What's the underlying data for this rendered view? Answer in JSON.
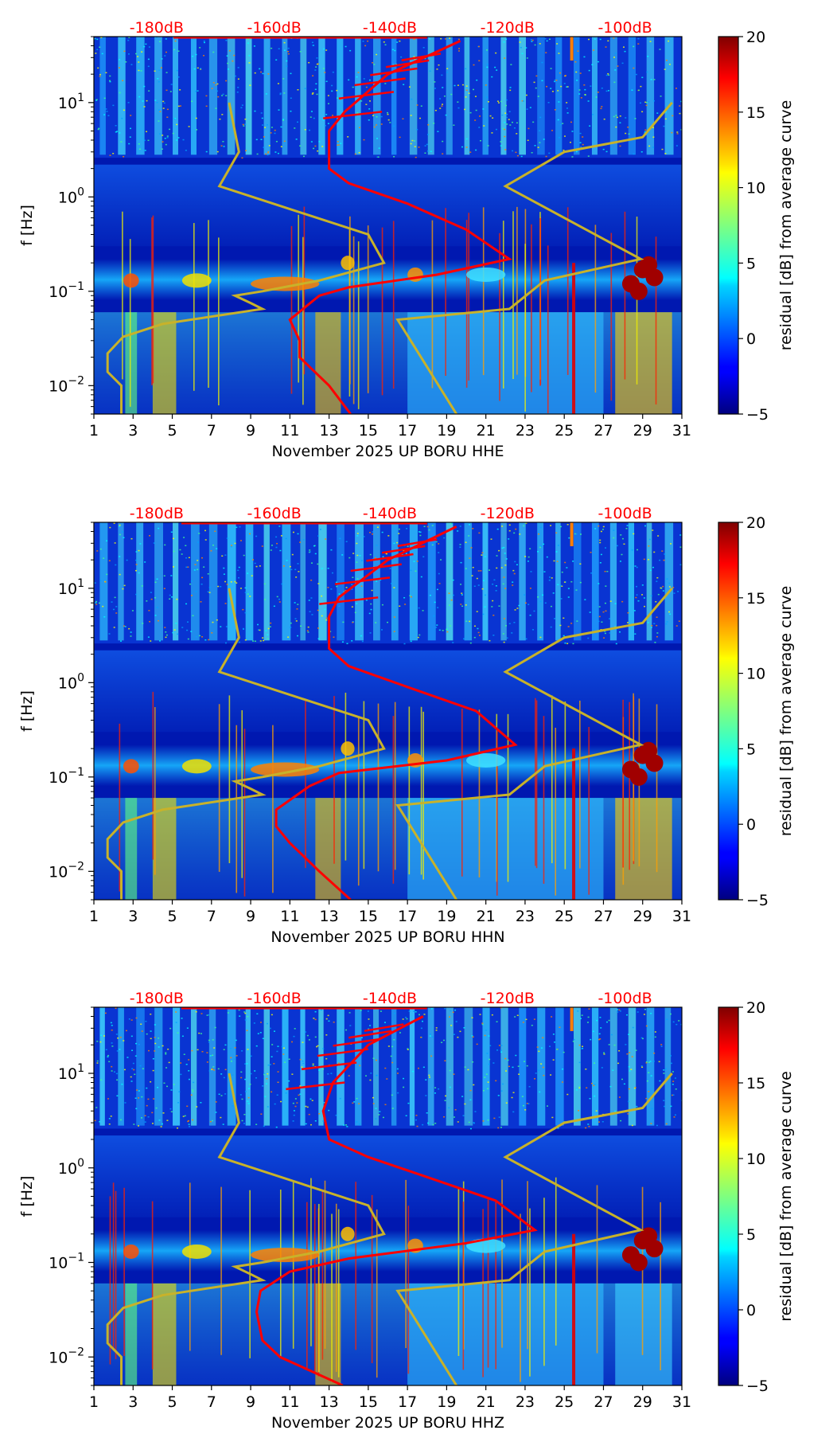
{
  "chart_data": [
    {
      "type": "heatmap",
      "xlabel": "November 2025 UP BORU  HHE",
      "ylabel": "f [Hz]",
      "x_ticks": [
        "1",
        "3",
        "5",
        "7",
        "9",
        "11",
        "13",
        "15",
        "17",
        "19",
        "21",
        "23",
        "25",
        "27",
        "29",
        "31"
      ],
      "y_ticks": [
        {
          "value": 0.01,
          "base": "10",
          "exp": "−2"
        },
        {
          "value": 0.1,
          "base": "10",
          "exp": "−1"
        },
        {
          "value": 1,
          "base": "10",
          "exp": "0"
        },
        {
          "value": 10,
          "base": "10",
          "exp": "1"
        }
      ],
      "db_labels": [
        "-180dB",
        "-160dB",
        "-140dB",
        "-120dB",
        "-100dB"
      ],
      "xlim": [
        1,
        31
      ],
      "ylim": [
        0.005,
        50
      ],
      "colorbar": {
        "label": "residual [dB] from average curve",
        "min": -5,
        "max": 20,
        "ticks": [
          "−5",
          "0",
          "5",
          "10",
          "15",
          "20"
        ]
      },
      "colors": {
        "noise_model": "#c8b22a",
        "psd_curve": "#ff0000",
        "db_text": "#ff0000"
      },
      "noise_model": [
        [
          7.9,
          10
        ],
        [
          8.4,
          3
        ],
        [
          7.4,
          1.3
        ],
        [
          15,
          0.4
        ],
        [
          15.8,
          0.2
        ],
        [
          12.5,
          0.13
        ],
        [
          9.6,
          0.1
        ],
        [
          8.2,
          0.09
        ],
        [
          9,
          0.075
        ],
        [
          9.6,
          0.065
        ],
        [
          4.5,
          0.045
        ],
        [
          2.5,
          0.033
        ],
        [
          1.7,
          0.022
        ],
        [
          1.7,
          0.014
        ],
        [
          2.4,
          0.01
        ],
        [
          2.4,
          0.005
        ]
      ],
      "noise_model_high": [
        [
          30.5,
          10
        ],
        [
          29,
          4.3
        ],
        [
          25,
          3
        ],
        [
          22,
          1.3
        ],
        [
          28.9,
          0.22
        ],
        [
          24,
          0.13
        ],
        [
          22.2,
          0.065
        ],
        [
          16.5,
          0.05
        ],
        [
          19.5,
          0.005
        ]
      ],
      "psd_curve": [
        [
          19.7,
          45
        ],
        [
          16,
          20
        ],
        [
          13.8,
          8
        ],
        [
          13,
          5
        ],
        [
          13,
          2
        ],
        [
          14,
          1.4
        ],
        [
          17,
          0.85
        ],
        [
          20,
          0.45
        ],
        [
          22.2,
          0.22
        ],
        [
          18.5,
          0.15
        ],
        [
          14,
          0.11
        ],
        [
          12.5,
          0.09
        ],
        [
          11,
          0.05
        ],
        [
          11.5,
          0.03
        ],
        [
          11.5,
          0.02
        ],
        [
          13,
          0.01
        ],
        [
          14.1,
          0.005
        ]
      ]
    },
    {
      "type": "heatmap",
      "xlabel": "November 2025 UP BORU  HHN",
      "ylabel": "f [Hz]",
      "x_ticks": [
        "1",
        "3",
        "5",
        "7",
        "9",
        "11",
        "13",
        "15",
        "17",
        "19",
        "21",
        "23",
        "25",
        "27",
        "29",
        "31"
      ],
      "y_ticks": [
        {
          "value": 0.01,
          "base": "10",
          "exp": "−2"
        },
        {
          "value": 0.1,
          "base": "10",
          "exp": "−1"
        },
        {
          "value": 1,
          "base": "10",
          "exp": "0"
        },
        {
          "value": 10,
          "base": "10",
          "exp": "1"
        }
      ],
      "db_labels": [
        "-180dB",
        "-160dB",
        "-140dB",
        "-120dB",
        "-100dB"
      ],
      "xlim": [
        1,
        31
      ],
      "ylim": [
        0.005,
        50
      ],
      "colorbar": {
        "label": "residual [dB] from average curve",
        "min": -5,
        "max": 20,
        "ticks": [
          "−5",
          "0",
          "5",
          "10",
          "15",
          "20"
        ]
      },
      "colors": {
        "noise_model": "#c8b22a",
        "psd_curve": "#ff0000",
        "db_text": "#ff0000"
      },
      "noise_model": [
        [
          7.9,
          10
        ],
        [
          8.4,
          3
        ],
        [
          7.4,
          1.3
        ],
        [
          15,
          0.4
        ],
        [
          15.8,
          0.2
        ],
        [
          12.5,
          0.13
        ],
        [
          9.6,
          0.1
        ],
        [
          8.2,
          0.09
        ],
        [
          9,
          0.075
        ],
        [
          9.6,
          0.065
        ],
        [
          4.5,
          0.045
        ],
        [
          2.5,
          0.033
        ],
        [
          1.7,
          0.022
        ],
        [
          1.7,
          0.014
        ],
        [
          2.4,
          0.01
        ],
        [
          2.4,
          0.005
        ]
      ],
      "noise_model_high": [
        [
          30.5,
          10
        ],
        [
          29,
          4.3
        ],
        [
          25,
          3
        ],
        [
          22,
          1.3
        ],
        [
          28.9,
          0.22
        ],
        [
          24,
          0.13
        ],
        [
          22.2,
          0.065
        ],
        [
          16.5,
          0.05
        ],
        [
          19.5,
          0.005
        ]
      ],
      "psd_curve": [
        [
          19.5,
          45
        ],
        [
          16,
          20
        ],
        [
          13.5,
          8
        ],
        [
          13,
          5
        ],
        [
          13,
          2.3
        ],
        [
          14,
          1.5
        ],
        [
          17,
          0.9
        ],
        [
          20.5,
          0.5
        ],
        [
          22.5,
          0.22
        ],
        [
          19,
          0.15
        ],
        [
          13.5,
          0.11
        ],
        [
          12,
          0.08
        ],
        [
          10.3,
          0.045
        ],
        [
          10.3,
          0.03
        ],
        [
          11,
          0.02
        ],
        [
          12.5,
          0.01
        ],
        [
          14.1,
          0.005
        ]
      ]
    },
    {
      "type": "heatmap",
      "xlabel": "November 2025 UP BORU  HHZ",
      "ylabel": "f [Hz]",
      "x_ticks": [
        "1",
        "3",
        "5",
        "7",
        "9",
        "11",
        "13",
        "15",
        "17",
        "19",
        "21",
        "23",
        "25",
        "27",
        "29",
        "31"
      ],
      "y_ticks": [
        {
          "value": 0.01,
          "base": "10",
          "exp": "−2"
        },
        {
          "value": 0.1,
          "base": "10",
          "exp": "−1"
        },
        {
          "value": 1,
          "base": "10",
          "exp": "0"
        },
        {
          "value": 10,
          "base": "10",
          "exp": "1"
        }
      ],
      "db_labels": [
        "-180dB",
        "-160dB",
        "-140dB",
        "-120dB",
        "-100dB"
      ],
      "xlim": [
        1,
        31
      ],
      "ylim": [
        0.005,
        50
      ],
      "colorbar": {
        "label": "residual [dB] from average curve",
        "min": -5,
        "max": 20,
        "ticks": [
          "−5",
          "0",
          "5",
          "10",
          "15",
          "20"
        ]
      },
      "colors": {
        "noise_model": "#c8b22a",
        "psd_curve": "#ff0000",
        "db_text": "#ff0000"
      },
      "noise_model": [
        [
          7.9,
          10
        ],
        [
          8.4,
          3
        ],
        [
          7.4,
          1.3
        ],
        [
          15,
          0.4
        ],
        [
          15.8,
          0.2
        ],
        [
          12.5,
          0.13
        ],
        [
          9.6,
          0.1
        ],
        [
          8.2,
          0.09
        ],
        [
          9,
          0.075
        ],
        [
          9.6,
          0.065
        ],
        [
          4.5,
          0.045
        ],
        [
          2.5,
          0.033
        ],
        [
          1.7,
          0.022
        ],
        [
          1.7,
          0.014
        ],
        [
          2.4,
          0.01
        ],
        [
          2.4,
          0.005
        ]
      ],
      "noise_model_high": [
        [
          30.5,
          10
        ],
        [
          29,
          4.3
        ],
        [
          25,
          3
        ],
        [
          22,
          1.3
        ],
        [
          28.9,
          0.22
        ],
        [
          24,
          0.13
        ],
        [
          22.2,
          0.065
        ],
        [
          16.5,
          0.05
        ],
        [
          19.5,
          0.005
        ]
      ],
      "psd_curve": [
        [
          17.8,
          40
        ],
        [
          15,
          20
        ],
        [
          13.2,
          8
        ],
        [
          12.7,
          4
        ],
        [
          13,
          2
        ],
        [
          15,
          1.3
        ],
        [
          18,
          0.8
        ],
        [
          21.5,
          0.45
        ],
        [
          23.5,
          0.22
        ],
        [
          20,
          0.16
        ],
        [
          14,
          0.11
        ],
        [
          11,
          0.08
        ],
        [
          9.5,
          0.05
        ],
        [
          9.3,
          0.03
        ],
        [
          9.6,
          0.015
        ],
        [
          10.5,
          0.01
        ],
        [
          13.7,
          0.005
        ]
      ]
    }
  ]
}
